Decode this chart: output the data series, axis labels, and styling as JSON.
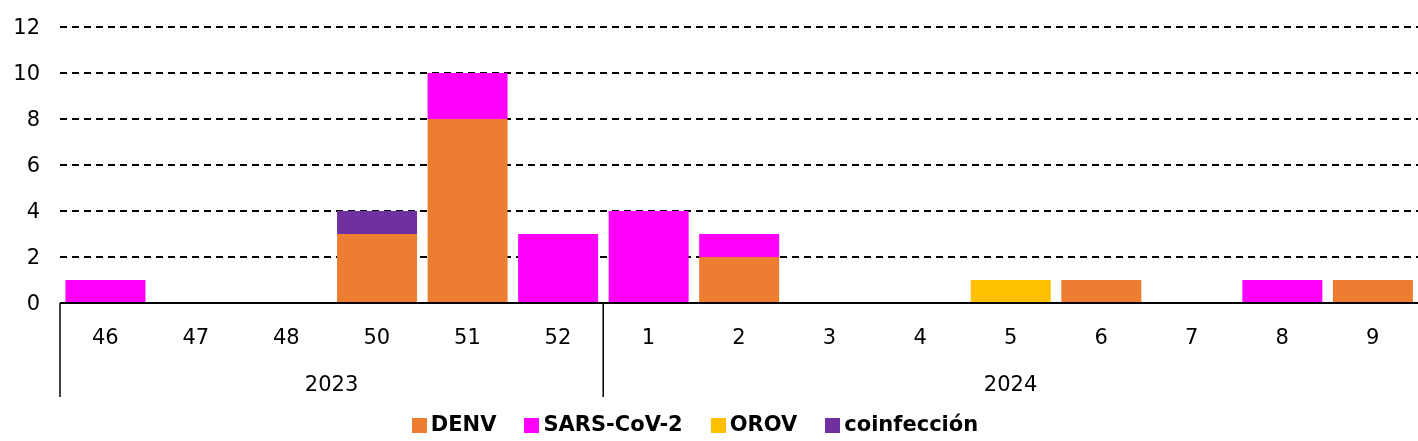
{
  "chart_data": {
    "type": "bar",
    "stacked": true,
    "categories": [
      "46",
      "47",
      "48",
      "50",
      "51",
      "52",
      "1",
      "2",
      "3",
      "4",
      "5",
      "6",
      "7",
      "8",
      "9"
    ],
    "series": [
      {
        "name": "DENV",
        "color": "#ed7d31",
        "values": [
          0,
          0,
          0,
          3,
          8,
          0,
          0,
          2,
          0,
          0,
          0,
          1,
          0,
          0,
          1
        ]
      },
      {
        "name": "SARS-CoV-2",
        "color": "#ff00ff",
        "values": [
          1,
          0,
          0,
          0,
          2,
          3,
          4,
          1,
          0,
          0,
          0,
          0,
          0,
          1,
          0
        ]
      },
      {
        "name": "OROV",
        "color": "#ffc000",
        "values": [
          0,
          0,
          0,
          0,
          0,
          0,
          0,
          0,
          0,
          0,
          1,
          0,
          0,
          0,
          0
        ]
      },
      {
        "name": "coinfección",
        "color": "#7030a0",
        "values": [
          0,
          0,
          0,
          1,
          0,
          0,
          0,
          0,
          0,
          0,
          0,
          0,
          0,
          0,
          0
        ]
      }
    ],
    "ylim": [
      0,
      12
    ],
    "yticks": [
      0,
      2,
      4,
      6,
      8,
      10,
      12
    ],
    "grid": "y",
    "legend": "bottom",
    "annotations": [
      "2023",
      "2024"
    ]
  }
}
